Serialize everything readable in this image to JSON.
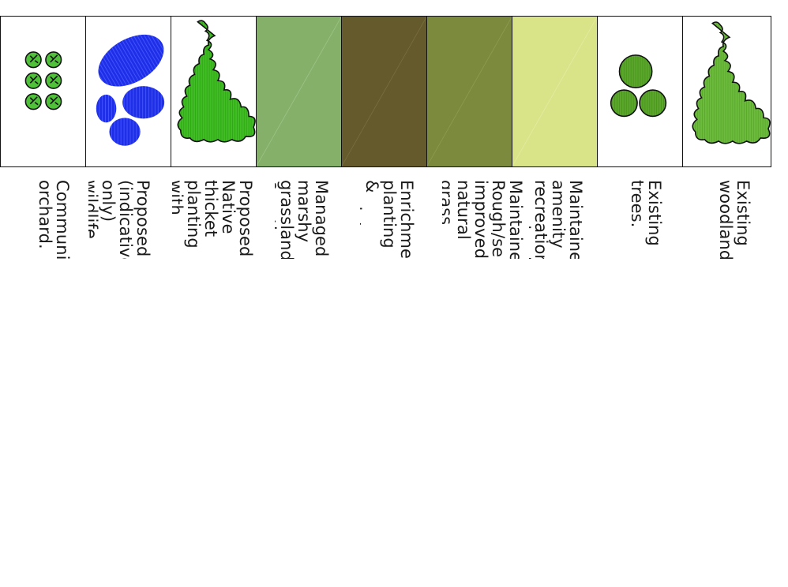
{
  "legend": {
    "items": [
      {
        "id": "community-orchard",
        "label": "Community orchard.",
        "fill": "#ffffff",
        "icon": "orchard-icon"
      },
      {
        "id": "wildlife-ponds",
        "label": "Proposed (indicative only) wildlife ponds restoration & habitat creation",
        "fill": "#ffffff",
        "icon": "pond-icon"
      },
      {
        "id": "thicket-planting",
        "label": "Proposed Native thicket planting with fencing to prevent access to dangerous errosion/fall.",
        "fill": "#ffffff",
        "icon": "thicket-icon"
      },
      {
        "id": "marshy-grassland",
        "label": "Managed marshy grassland & native wetland habitat restoration.",
        "fill": "#85b06a"
      },
      {
        "id": "enrichment-planting",
        "label": "Enrichment planting & maintenance: mixed deciduous native woodland",
        "fill": "#655a2c"
      },
      {
        "id": "rough-grassland",
        "label": "Maintained Rough/semi-improved natural grass land carry out limited tree  &  shrub removal to maintain key views.",
        "fill": "#7b8a3c"
      },
      {
        "id": "amenity-grassland",
        "label": "Maintained/mown amenity recreation grassland.",
        "fill": "#d9e387"
      },
      {
        "id": "existing-trees",
        "label": "Existing trees.",
        "fill": "#ffffff",
        "icon": "tree-icon"
      },
      {
        "id": "existing-woodlands",
        "label": "Existing woodlands.",
        "fill": "#ffffff",
        "icon": "woodland-icon"
      }
    ],
    "colors": {
      "orchard_leaf": "#4fc23a",
      "pond_blue": "#1f2fe8",
      "thicket_green": "#3fbf22",
      "tree_green": "#5aa82a",
      "woodland_green": "#6cbc3c",
      "outline": "#111111"
    }
  }
}
